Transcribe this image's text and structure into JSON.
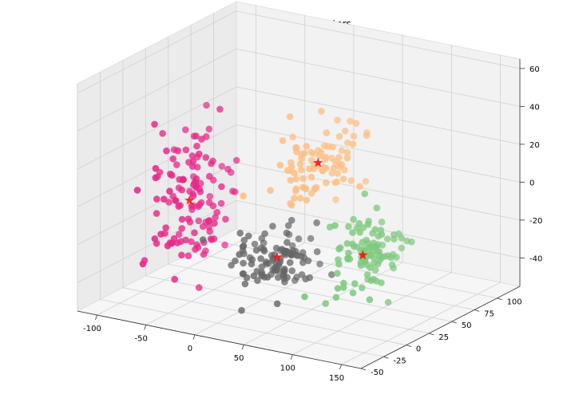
{
  "chart_data": {
    "type": "scatter",
    "projection": "3d",
    "title": "KMeans Predicted Clusters",
    "xlabel": "",
    "ylabel": "",
    "zlabel": "",
    "xlim": [
      -120,
      170
    ],
    "ylim": [
      -50,
      125
    ],
    "zlim": [
      -55,
      65
    ],
    "x_ticks": [
      -100,
      -50,
      0,
      50,
      100,
      150
    ],
    "y_ticks": [
      -50,
      -25,
      0,
      25,
      50,
      75,
      100
    ],
    "z_ticks": [
      -40,
      -20,
      0,
      20,
      40,
      60
    ],
    "grid": true,
    "legend": "none",
    "series": [
      {
        "color": "#e7298a",
        "count": 130,
        "center": [
          -65,
          15,
          -5
        ],
        "spread": [
          25,
          30,
          32
        ],
        "centroid": [
          -63,
          12,
          -6
        ]
      },
      {
        "color": "#666666",
        "count": 110,
        "center": [
          10,
          30,
          -35
        ],
        "spread": [
          28,
          22,
          12
        ],
        "centroid": [
          10,
          30,
          -33
        ]
      },
      {
        "color": "#fdc086",
        "count": 90,
        "center": [
          75,
          5,
          30
        ],
        "spread": [
          25,
          30,
          18
        ],
        "centroid": [
          75,
          5,
          30
        ]
      },
      {
        "color": "#7fc97f",
        "count": 100,
        "center": [
          120,
          10,
          -15
        ],
        "spread": [
          22,
          30,
          16
        ],
        "centroid": [
          118,
          8,
          -15
        ]
      }
    ],
    "centroid_marker": "star",
    "centroid_color": "#ff0000"
  }
}
